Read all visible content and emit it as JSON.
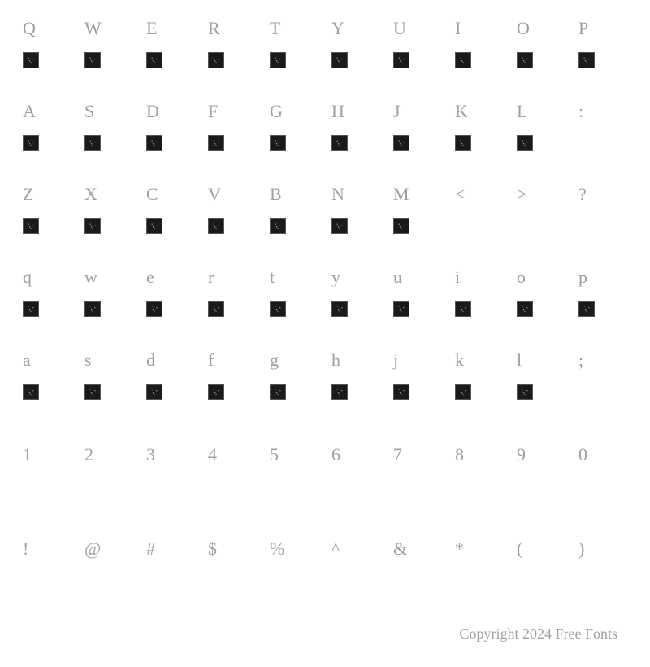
{
  "rows": [
    {
      "labels": [
        "Q",
        "W",
        "E",
        "R",
        "T",
        "Y",
        "U",
        "I",
        "O",
        "P"
      ],
      "glyphs": [
        true,
        true,
        true,
        true,
        true,
        true,
        true,
        true,
        true,
        true
      ]
    },
    {
      "labels": [
        "A",
        "S",
        "D",
        "F",
        "G",
        "H",
        "J",
        "K",
        "L",
        ":"
      ],
      "glyphs": [
        true,
        true,
        true,
        true,
        true,
        true,
        true,
        true,
        true,
        false
      ]
    },
    {
      "labels": [
        "Z",
        "X",
        "C",
        "V",
        "B",
        "N",
        "M",
        "<",
        ">",
        "?"
      ],
      "glyphs": [
        true,
        true,
        true,
        true,
        true,
        true,
        true,
        false,
        false,
        false
      ]
    },
    {
      "labels": [
        "q",
        "w",
        "e",
        "r",
        "t",
        "y",
        "u",
        "i",
        "o",
        "p"
      ],
      "glyphs": [
        true,
        true,
        true,
        true,
        true,
        true,
        true,
        true,
        true,
        true
      ]
    },
    {
      "labels": [
        "a",
        "s",
        "d",
        "f",
        "g",
        "h",
        "j",
        "k",
        "l",
        ";"
      ],
      "glyphs": [
        true,
        true,
        true,
        true,
        true,
        true,
        true,
        true,
        true,
        false
      ]
    },
    {
      "labels": [
        "1",
        "2",
        "3",
        "4",
        "5",
        "6",
        "7",
        "8",
        "9",
        "0"
      ],
      "glyphs": [
        false,
        false,
        false,
        false,
        false,
        false,
        false,
        false,
        false,
        false
      ]
    },
    {
      "labels": [
        "!",
        "@",
        "#",
        "$",
        "%",
        "^",
        "&",
        "*",
        "(",
        ")"
      ],
      "glyphs": [
        false,
        false,
        false,
        false,
        false,
        false,
        false,
        false,
        false,
        false
      ]
    }
  ],
  "label_color": "#a0a0a0",
  "label_fontsize": 22,
  "glyph_bg": "#1a1a1a",
  "glyph_size": 20,
  "background": "#ffffff",
  "footer": "Copyright 2024 Free Fonts",
  "footer_color": "#a0a0a0",
  "footer_fontsize": 18
}
